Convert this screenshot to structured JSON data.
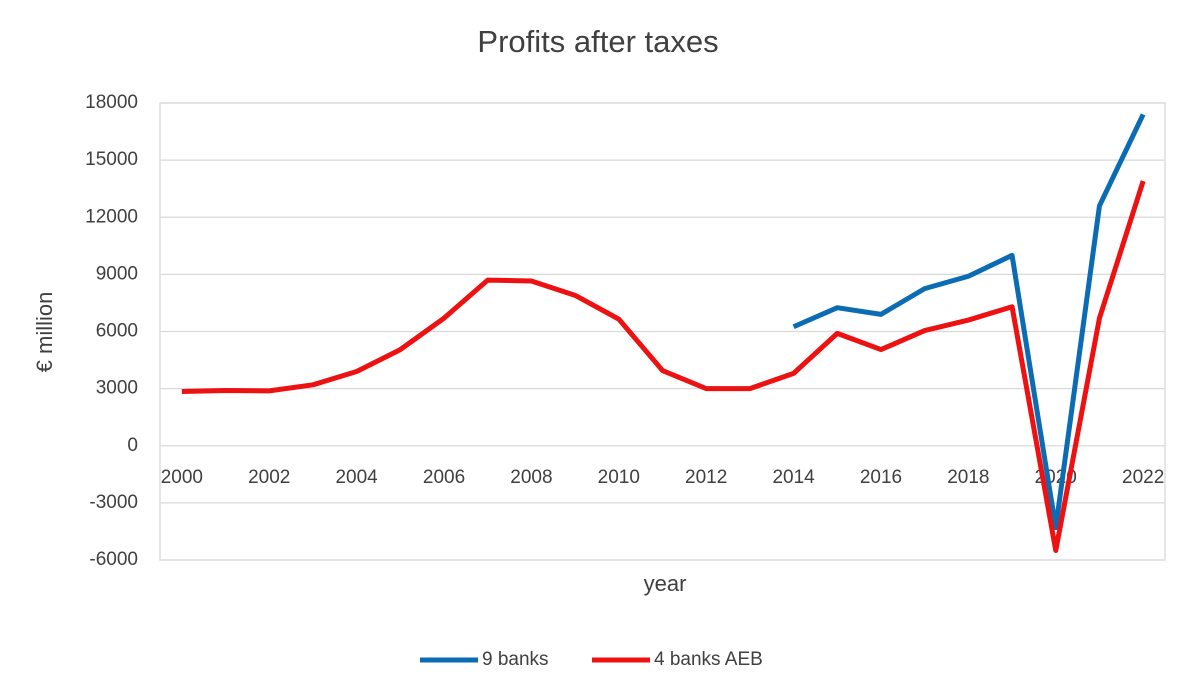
{
  "chart_data": {
    "type": "line",
    "title": "Profits after taxes",
    "x_label": "year",
    "y_label": "€ million",
    "x": [
      2000,
      2001,
      2002,
      2003,
      2004,
      2005,
      2006,
      2007,
      2008,
      2009,
      2010,
      2011,
      2012,
      2013,
      2014,
      2015,
      2016,
      2017,
      2018,
      2019,
      2020,
      2021,
      2022
    ],
    "series": [
      {
        "name": "9 banks",
        "color": "#0b6bb3",
        "values": [
          null,
          null,
          null,
          null,
          null,
          null,
          null,
          null,
          null,
          null,
          null,
          null,
          null,
          null,
          6250,
          7250,
          6900,
          8250,
          8900,
          10000,
          -4300,
          12600,
          17400
        ]
      },
      {
        "name": "4 banks AEB",
        "color": "#ee1111",
        "values": [
          2850,
          2900,
          2880,
          3200,
          3900,
          5050,
          6700,
          8700,
          8650,
          7900,
          6650,
          3950,
          3000,
          3000,
          3800,
          5900,
          5050,
          6050,
          6600,
          7300,
          -5500,
          6700,
          13900
        ]
      }
    ],
    "xlim": [
      1999.5,
      2022.5
    ],
    "xticks": [
      2000,
      2002,
      2004,
      2006,
      2008,
      2010,
      2012,
      2014,
      2016,
      2018,
      2020,
      2022
    ],
    "ylim": [
      -6000,
      18000
    ],
    "yticks": [
      -6000,
      -3000,
      0,
      3000,
      6000,
      9000,
      12000,
      15000,
      18000
    ],
    "grid": true,
    "legend": "bottom"
  }
}
